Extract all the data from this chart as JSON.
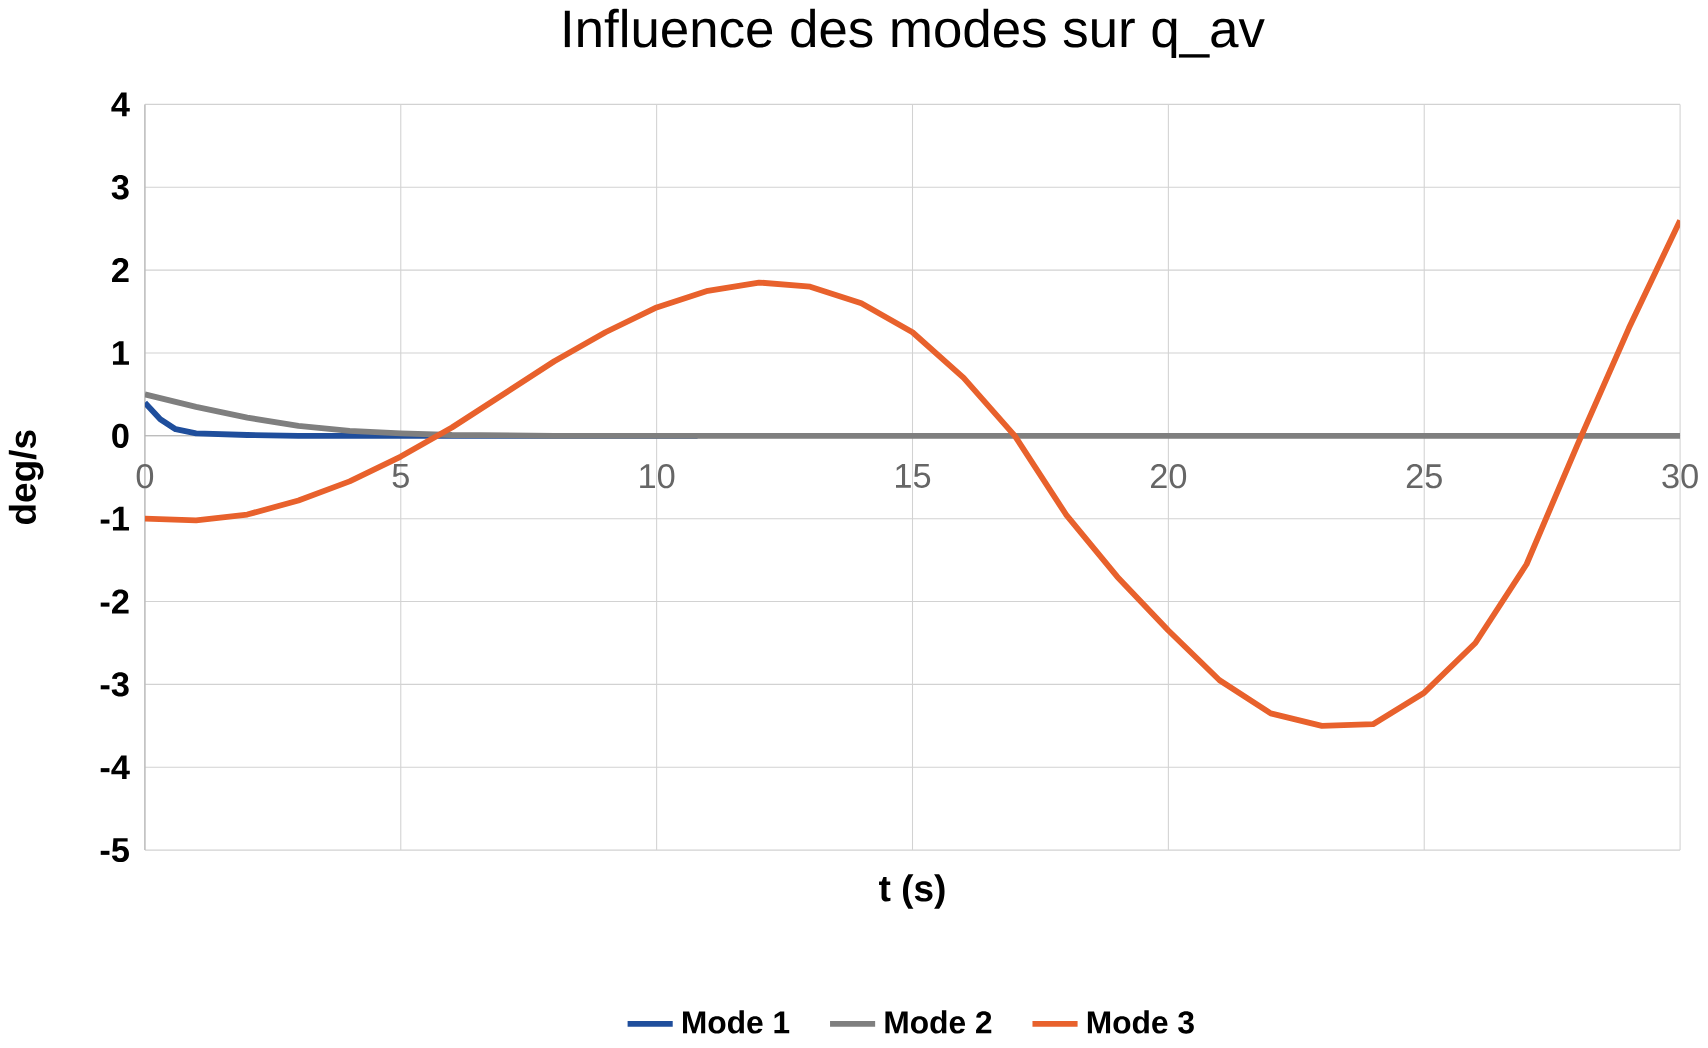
{
  "chart_data": {
    "type": "line",
    "title": "Influence des modes sur q_av",
    "xlabel": "t (s)",
    "ylabel": "deg/s",
    "xlim": [
      0,
      30
    ],
    "xticks": [
      0,
      5,
      10,
      15,
      20,
      25,
      30
    ],
    "ylim": [
      -5,
      4
    ],
    "yticks": [
      -5,
      -4,
      -3,
      -2,
      -1,
      0,
      1,
      2,
      3,
      4
    ],
    "grid": true,
    "legend": "bottom",
    "marker": "none",
    "line_style": "solid",
    "series": [
      {
        "name": "Mode 1",
        "color": "#1f4e9c",
        "x": [
          0,
          0.3,
          0.6,
          1,
          2,
          3,
          5,
          8,
          10.8
        ],
        "values": [
          0.4,
          0.2,
          0.08,
          0.03,
          0.01,
          0,
          0,
          0,
          0
        ]
      },
      {
        "name": "Mode 2",
        "color": "#7f7f7f",
        "x": [
          0,
          1,
          2,
          3,
          4,
          5,
          6,
          8,
          15,
          30
        ],
        "values": [
          0.5,
          0.35,
          0.22,
          0.12,
          0.06,
          0.03,
          0.01,
          0,
          0,
          0
        ]
      },
      {
        "name": "Mode 3",
        "color": "#e8612c",
        "x": [
          0,
          1,
          2,
          3,
          4,
          5,
          6,
          7,
          8,
          9,
          10,
          11,
          12,
          13,
          14,
          15,
          16,
          17,
          18,
          19,
          20,
          21,
          22,
          23,
          24,
          25,
          26,
          27,
          28,
          29,
          30
        ],
        "values": [
          -1.0,
          -1.02,
          -0.95,
          -0.78,
          -0.55,
          -0.25,
          0.1,
          0.5,
          0.9,
          1.25,
          1.55,
          1.75,
          1.85,
          1.8,
          1.6,
          1.25,
          0.7,
          0.0,
          -0.95,
          -1.7,
          -2.35,
          -2.95,
          -3.35,
          -3.5,
          -3.48,
          -3.1,
          -2.5,
          -1.55,
          -0.1,
          1.3,
          2.6
        ]
      }
    ]
  }
}
